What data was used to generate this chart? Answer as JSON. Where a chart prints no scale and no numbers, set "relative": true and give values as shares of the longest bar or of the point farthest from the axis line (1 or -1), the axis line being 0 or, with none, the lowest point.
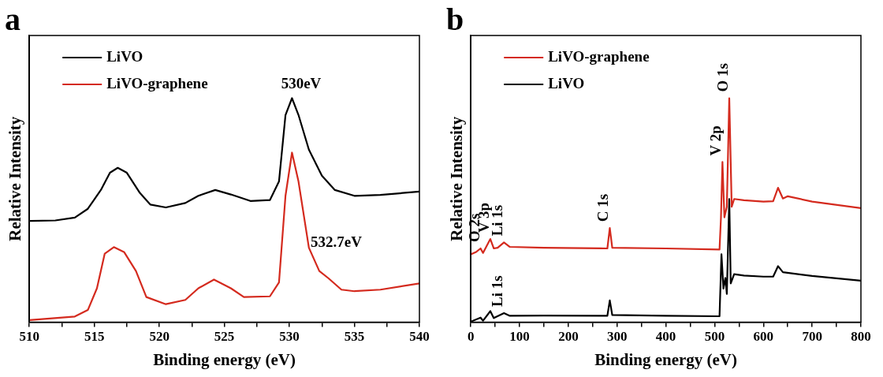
{
  "chart_data": [
    {
      "type": "line",
      "title": "a",
      "xlabel": "Binding energy (eV)",
      "ylabel": "Relative Intensity",
      "relative": true,
      "legend": "top left",
      "marker": "none",
      "line_style": "solid",
      "grid": false,
      "xlim": [
        510,
        540
      ],
      "xticks": [
        510,
        {
          "value": 512.5,
          "label": null
        },
        515,
        {
          "value": 517.5,
          "label": null
        },
        520,
        {
          "value": 522.5,
          "label": null
        },
        525,
        {
          "value": 527.5,
          "label": null
        },
        530,
        {
          "value": 532.5,
          "label": null
        },
        535,
        {
          "value": 537.5,
          "label": null
        },
        540
      ],
      "x": [
        510,
        512,
        513.5,
        514.5,
        515.5,
        516.2,
        516.8,
        517.5,
        518.5,
        519.3,
        520.5,
        522,
        523,
        524.3,
        525.5,
        527,
        528.5,
        529.2,
        529.7,
        530.2,
        530.7,
        531.5,
        532.5,
        533.5,
        535,
        537,
        540
      ],
      "series": [
        {
          "name": "LiVO",
          "color": "#000000",
          "values": [
            0.452,
            0.454,
            0.467,
            0.506,
            0.59,
            0.667,
            0.689,
            0.667,
            0.577,
            0.525,
            0.512,
            0.532,
            0.564,
            0.59,
            0.57,
            0.541,
            0.545,
            0.628,
            0.925,
            1.0,
            0.925,
            0.77,
            0.654,
            0.59,
            0.564,
            0.568,
            0.583
          ]
        },
        {
          "name": "LiVO-graphene",
          "color": "#d42a1e",
          "x": [
            510,
            513.5,
            514.5,
            515.2,
            515.8,
            516.5,
            517.3,
            518.2,
            519,
            520.5,
            522,
            523,
            524.2,
            525.5,
            526.5,
            528.5,
            529.2,
            529.7,
            530.2,
            530.7,
            531.5,
            532.3,
            533,
            534,
            535,
            537,
            540
          ],
          "values": [
            0.009,
            0.025,
            0.054,
            0.151,
            0.306,
            0.335,
            0.312,
            0.228,
            0.112,
            0.08,
            0.099,
            0.151,
            0.19,
            0.151,
            0.112,
            0.115,
            0.177,
            0.564,
            0.757,
            0.628,
            0.332,
            0.228,
            0.196,
            0.145,
            0.138,
            0.145,
            0.173
          ]
        }
      ],
      "annotations": [
        {
          "text": "530eV",
          "x": 530.3,
          "y": 1.0
        },
        {
          "text": "532.7eV",
          "x": 533,
          "y": 0.196
        }
      ]
    },
    {
      "type": "line",
      "title": "b",
      "xlabel": "Binding energy (eV)",
      "ylabel": "Relative Intensity",
      "relative": true,
      "legend": "top left",
      "marker": "none",
      "line_style": "solid",
      "grid": false,
      "xlim": [
        0,
        800
      ],
      "xticks": [
        0,
        {
          "value": 50,
          "label": null
        },
        100,
        {
          "value": 150,
          "label": null
        },
        200,
        {
          "value": 250,
          "label": null
        },
        300,
        {
          "value": 350,
          "label": null
        },
        400,
        {
          "value": 450,
          "label": null
        },
        500,
        {
          "value": 550,
          "label": null
        },
        600,
        {
          "value": 650,
          "label": null
        },
        700,
        {
          "value": 750,
          "label": null
        },
        800
      ],
      "x": [
        0,
        10,
        20,
        25,
        40,
        47,
        55,
        68,
        80,
        150,
        280,
        285,
        290,
        400,
        510,
        513,
        516,
        520,
        525,
        530,
        535,
        540,
        560,
        600,
        620,
        630,
        640,
        650,
        700,
        800
      ],
      "series": [
        {
          "name": "LiVO-graphene",
          "color": "#d42a1e",
          "values": [
            0.303,
            0.312,
            0.329,
            0.309,
            0.371,
            0.329,
            0.332,
            0.356,
            0.336,
            0.332,
            0.329,
            0.42,
            0.332,
            0.329,
            0.324,
            0.468,
            0.715,
            0.468,
            0.515,
            1.0,
            0.515,
            0.55,
            0.544,
            0.538,
            0.54,
            0.6,
            0.552,
            0.562,
            0.538,
            0.509
          ]
        },
        {
          "name": "LiVO",
          "color": "#000000",
          "x": [
            0,
            20,
            25,
            40,
            47,
            68,
            80,
            150,
            280,
            285,
            290,
            400,
            510,
            514,
            518,
            522,
            525,
            530,
            533,
            540,
            560,
            600,
            620,
            630,
            640,
            700,
            800
          ],
          "values": [
            0.002,
            0.02,
            0.006,
            0.049,
            0.018,
            0.04,
            0.028,
            0.029,
            0.028,
            0.097,
            0.032,
            0.028,
            0.026,
            0.303,
            0.15,
            0.197,
            0.126,
            0.55,
            0.173,
            0.214,
            0.208,
            0.203,
            0.203,
            0.25,
            0.223,
            0.206,
            0.185
          ]
        }
      ],
      "annotations": [
        {
          "text": "O 2s",
          "x": 20,
          "y": 0.329
        },
        {
          "text": "V 3p",
          "x": 40,
          "y": 0.371
        },
        {
          "text": "Li 1s",
          "x": 68,
          "y": 0.356
        },
        {
          "text": "Li 1s",
          "x": 68,
          "y": 0.04
        },
        {
          "text": "C 1s",
          "x": 285,
          "y": 0.42
        },
        {
          "text": "V 2p",
          "x": 516,
          "y": 0.715
        },
        {
          "text": "O 1s",
          "x": 530,
          "y": 1.0
        }
      ]
    }
  ]
}
